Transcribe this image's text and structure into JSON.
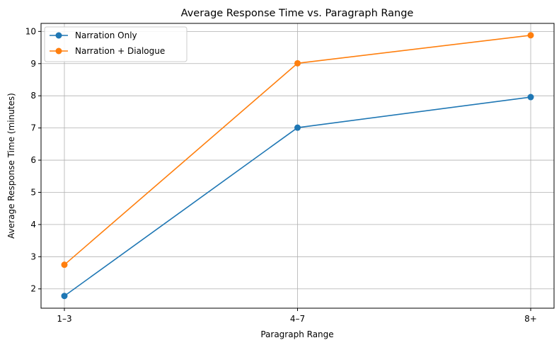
{
  "chart_data": {
    "type": "line",
    "title": "Average Response Time vs. Paragraph Range",
    "xlabel": "Paragraph Range",
    "ylabel": "Average Response Time (minutes)",
    "categories": [
      "1–3",
      "4–7",
      "8+"
    ],
    "ylim": [
      1.4,
      10.25
    ],
    "yticks": [
      "2",
      "3",
      "4",
      "5",
      "6",
      "7",
      "8",
      "9",
      "10"
    ],
    "grid": true,
    "legend_position": "upper left",
    "series": [
      {
        "name": "Narration Only",
        "values": [
          1.78,
          7.01,
          7.96
        ],
        "color": "#1f77b4"
      },
      {
        "name": "Narration + Dialogue",
        "values": [
          2.75,
          9.01,
          9.88
        ],
        "color": "#ff7f0e"
      }
    ]
  }
}
